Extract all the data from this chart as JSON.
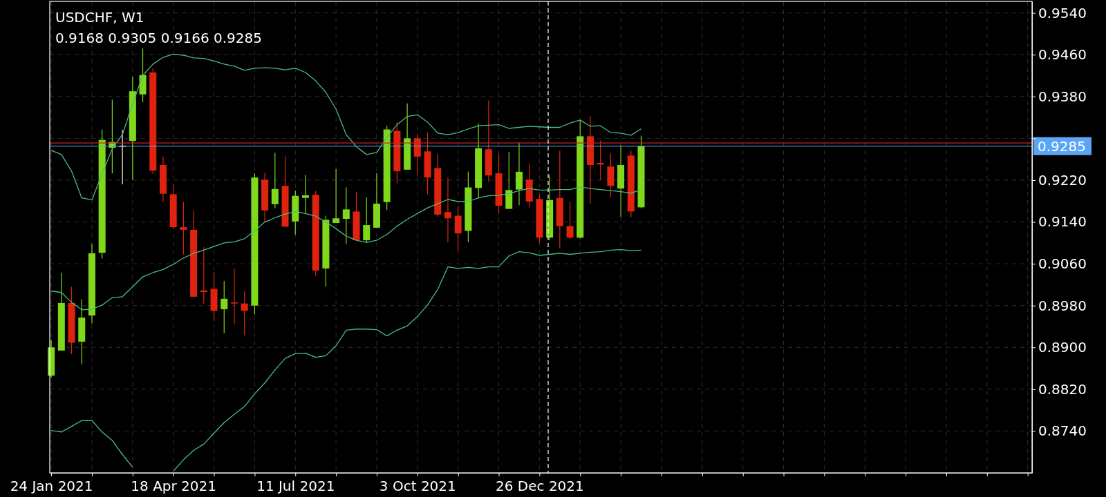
{
  "chart_data": {
    "type": "candlestick",
    "title": "USDCHF, W1",
    "subtitle": "0.9168 0.9305 0.9166 0.9285",
    "x": [
      "2021-01-24",
      "2021-01-31",
      "2021-02-07",
      "2021-02-14",
      "2021-02-21",
      "2021-02-28",
      "2021-03-07",
      "2021-03-14",
      "2021-03-21",
      "2021-03-28",
      "2021-04-04",
      "2021-04-11",
      "2021-04-18",
      "2021-04-25",
      "2021-05-02",
      "2021-05-09",
      "2021-05-16",
      "2021-05-23",
      "2021-05-30",
      "2021-06-06",
      "2021-06-13",
      "2021-06-20",
      "2021-06-27",
      "2021-07-04",
      "2021-07-11",
      "2021-07-18",
      "2021-07-25",
      "2021-08-01",
      "2021-08-08",
      "2021-08-15",
      "2021-08-22",
      "2021-08-29",
      "2021-09-05",
      "2021-09-12",
      "2021-09-19",
      "2021-09-26",
      "2021-10-03",
      "2021-10-10",
      "2021-10-17",
      "2021-10-24",
      "2021-10-31",
      "2021-11-07",
      "2021-11-14",
      "2021-11-21",
      "2021-11-28",
      "2021-12-05",
      "2021-12-12",
      "2021-12-19",
      "2021-12-26",
      "2022-01-02",
      "2022-01-09",
      "2022-01-16",
      "2022-01-23",
      "2022-01-30",
      "2022-02-06",
      "2022-02-13",
      "2022-02-20",
      "2022-02-27",
      "2022-03-06"
    ],
    "series": [
      {
        "type": "candlestick",
        "ohlc": [
          [
            0.8846,
            0.8914,
            0.8843,
            0.89
          ],
          [
            0.8894,
            0.9043,
            0.8894,
            0.8985
          ],
          [
            0.8985,
            0.9016,
            0.8887,
            0.8909
          ],
          [
            0.8911,
            0.8992,
            0.8868,
            0.8957
          ],
          [
            0.8961,
            0.9098,
            0.8946,
            0.908
          ],
          [
            0.9081,
            0.9317,
            0.907,
            0.9297
          ],
          [
            0.9282,
            0.9374,
            0.9233,
            0.9293
          ],
          [
            0.9286,
            0.9316,
            0.9212,
            0.9286
          ],
          [
            0.9295,
            0.9418,
            0.922,
            0.939
          ],
          [
            0.9384,
            0.9472,
            0.9369,
            0.9421
          ],
          [
            0.9426,
            0.9434,
            0.9232,
            0.9238
          ],
          [
            0.9249,
            0.9265,
            0.9178,
            0.9194
          ],
          [
            0.9193,
            0.9213,
            0.9127,
            0.913
          ],
          [
            0.913,
            0.9178,
            0.9078,
            0.9125
          ],
          [
            0.9125,
            0.9162,
            0.8997,
            0.8997
          ],
          [
            0.9009,
            0.9092,
            0.8984,
            0.9006
          ],
          [
            0.9012,
            0.9044,
            0.8951,
            0.897
          ],
          [
            0.8973,
            0.9027,
            0.8927,
            0.8993
          ],
          [
            0.8986,
            0.9051,
            0.8944,
            0.8984
          ],
          [
            0.8984,
            0.9007,
            0.8923,
            0.897
          ],
          [
            0.898,
            0.9233,
            0.8963,
            0.9225
          ],
          [
            0.9221,
            0.9234,
            0.914,
            0.9162
          ],
          [
            0.9174,
            0.9272,
            0.9166,
            0.9203
          ],
          [
            0.9209,
            0.9266,
            0.9131,
            0.9131
          ],
          [
            0.9141,
            0.92,
            0.9116,
            0.919
          ],
          [
            0.9186,
            0.923,
            0.9156,
            0.9191
          ],
          [
            0.9192,
            0.9199,
            0.9037,
            0.9047
          ],
          [
            0.9051,
            0.9152,
            0.9016,
            0.9144
          ],
          [
            0.9138,
            0.9241,
            0.9138,
            0.9147
          ],
          [
            0.9146,
            0.9206,
            0.9098,
            0.9164
          ],
          [
            0.916,
            0.9197,
            0.9105,
            0.9105
          ],
          [
            0.9105,
            0.9187,
            0.91,
            0.9134
          ],
          [
            0.9129,
            0.9233,
            0.9129,
            0.9175
          ],
          [
            0.9178,
            0.9324,
            0.9163,
            0.9317
          ],
          [
            0.9314,
            0.9331,
            0.9214,
            0.9237
          ],
          [
            0.924,
            0.9367,
            0.924,
            0.93
          ],
          [
            0.93,
            0.9308,
            0.923,
            0.9265
          ],
          [
            0.9275,
            0.9311,
            0.9193,
            0.9225
          ],
          [
            0.9243,
            0.927,
            0.915,
            0.9154
          ],
          [
            0.9159,
            0.9225,
            0.9101,
            0.9147
          ],
          [
            0.9152,
            0.9171,
            0.9083,
            0.9118
          ],
          [
            0.9123,
            0.9236,
            0.9101,
            0.9206
          ],
          [
            0.9205,
            0.9328,
            0.9186,
            0.9281
          ],
          [
            0.9279,
            0.9372,
            0.9217,
            0.9229
          ],
          [
            0.9233,
            0.9271,
            0.9156,
            0.9171
          ],
          [
            0.9165,
            0.9274,
            0.9165,
            0.9201
          ],
          [
            0.9202,
            0.9292,
            0.9172,
            0.9236
          ],
          [
            0.9221,
            0.9252,
            0.9167,
            0.9179
          ],
          [
            0.9184,
            0.9192,
            0.91,
            0.911
          ],
          [
            0.911,
            0.923,
            0.9105,
            0.9182
          ],
          [
            0.9186,
            0.9276,
            0.909,
            0.9132
          ],
          [
            0.9132,
            0.9179,
            0.9107,
            0.911
          ],
          [
            0.911,
            0.9334,
            0.9108,
            0.9304
          ],
          [
            0.9304,
            0.9342,
            0.9175,
            0.9249
          ],
          [
            0.9253,
            0.9296,
            0.922,
            0.925
          ],
          [
            0.9246,
            0.9271,
            0.9187,
            0.9209
          ],
          [
            0.9204,
            0.9287,
            0.915,
            0.9249
          ],
          [
            0.9267,
            0.9276,
            0.9149,
            0.916
          ],
          [
            0.9168,
            0.9305,
            0.9166,
            0.9285
          ]
        ],
        "colors": [
          "#7fd91a",
          "#7fd91a",
          "#e0230f",
          "#7fd91a",
          "#7fd91a",
          "#7fd91a",
          "#7fd91a",
          "#ffffff",
          "#7fd91a",
          "#7fd91a",
          "#e0230f",
          "#e0230f",
          "#e0230f",
          "#e0230f",
          "#e0230f",
          "#e0230f",
          "#e0230f",
          "#7fd91a",
          "#e0230f",
          "#e0230f",
          "#7fd91a",
          "#e0230f",
          "#7fd91a",
          "#e0230f",
          "#7fd91a",
          "#7fd91a",
          "#e0230f",
          "#7fd91a",
          "#7fd91a",
          "#7fd91a",
          "#e0230f",
          "#7fd91a",
          "#7fd91a",
          "#7fd91a",
          "#e0230f",
          "#7fd91a",
          "#e0230f",
          "#e0230f",
          "#e0230f",
          "#e0230f",
          "#e0230f",
          "#7fd91a",
          "#7fd91a",
          "#e0230f",
          "#e0230f",
          "#7fd91a",
          "#7fd91a",
          "#e0230f",
          "#e0230f",
          "#7fd91a",
          "#e0230f",
          "#e0230f",
          "#7fd91a",
          "#e0230f",
          "#e0230f",
          "#e0230f",
          "#7fd91a",
          "#e0230f",
          "#7fd91a"
        ]
      },
      {
        "type": "line",
        "color": "#4cbb85",
        "values": [
          0.9277,
          0.9269,
          0.9237,
          0.9186,
          0.9182,
          0.9232,
          0.928,
          0.9307,
          0.9366,
          0.942,
          0.9442,
          0.9455,
          0.9461,
          0.9459,
          0.9454,
          0.9453,
          0.9448,
          0.9442,
          0.9438,
          0.943,
          0.9434,
          0.9435,
          0.9434,
          0.9431,
          0.9434,
          0.9426,
          0.941,
          0.9388,
          0.9356,
          0.9307,
          0.9284,
          0.9269,
          0.9273,
          0.9302,
          0.9326,
          0.9342,
          0.9345,
          0.9331,
          0.931,
          0.9307,
          0.9311,
          0.9318,
          0.9324,
          0.9325,
          0.9326,
          0.9319,
          0.9321,
          0.9323,
          0.9322,
          0.9321,
          0.9321,
          0.9329,
          0.9335,
          0.9323,
          0.9324,
          0.9311,
          0.931,
          0.9306,
          0.9318
        ]
      },
      {
        "type": "line",
        "color": "#4cbb85",
        "values": [
          0.9008,
          0.9005,
          0.8986,
          0.8972,
          0.8973,
          0.8981,
          0.8995,
          0.8997,
          0.9016,
          0.9035,
          0.9043,
          0.9049,
          0.9059,
          0.9071,
          0.908,
          0.9086,
          0.9093,
          0.91,
          0.9102,
          0.9108,
          0.9123,
          0.914,
          0.9148,
          0.9155,
          0.916,
          0.9156,
          0.9151,
          0.914,
          0.9127,
          0.9113,
          0.9105,
          0.9101,
          0.9105,
          0.9116,
          0.9132,
          0.9145,
          0.9156,
          0.9167,
          0.9175,
          0.9183,
          0.9179,
          0.9179,
          0.9186,
          0.919,
          0.9191,
          0.9194,
          0.92,
          0.9204,
          0.9201,
          0.9201,
          0.9202,
          0.9202,
          0.9207,
          0.9204,
          0.9202,
          0.92,
          0.9198,
          0.9195,
          0.9202
        ]
      },
      {
        "type": "line",
        "color": "#4cbb85",
        "values": [
          0.8741,
          0.8738,
          0.8749,
          0.876,
          0.876,
          0.8738,
          0.8722,
          0.8695,
          0.8671,
          null,
          null,
          null,
          0.8663,
          0.8685,
          0.8703,
          0.8715,
          0.8736,
          0.8756,
          0.8772,
          0.8787,
          0.8811,
          0.8832,
          0.8857,
          0.8879,
          0.8888,
          0.8889,
          0.8881,
          0.8884,
          0.8903,
          0.8933,
          0.8935,
          0.8935,
          0.8934,
          0.8922,
          0.8933,
          0.8941,
          0.8959,
          0.8981,
          0.9011,
          0.9054,
          0.9051,
          0.9053,
          0.9051,
          0.9054,
          0.9054,
          0.9075,
          0.9083,
          0.9081,
          0.9076,
          0.9078,
          0.908,
          0.9078,
          0.908,
          0.9082,
          0.9083,
          0.9086,
          0.9087,
          0.9085,
          0.9086
        ]
      }
    ],
    "xlim": [
      "2021-01-23",
      "2022-11-30"
    ],
    "xticks": [
      {
        "value": "2021-01-24",
        "label": "24 Jan 2021"
      },
      {
        "value": "2021-02-21",
        "label": null
      },
      {
        "value": "2021-03-21",
        "label": null
      },
      {
        "value": "2021-04-18",
        "label": "18 Apr 2021"
      },
      {
        "value": "2021-05-16",
        "label": null
      },
      {
        "value": "2021-06-13",
        "label": null
      },
      {
        "value": "2021-07-11",
        "label": "11 Jul 2021"
      },
      {
        "value": "2021-08-08",
        "label": null
      },
      {
        "value": "2021-09-05",
        "label": null
      },
      {
        "value": "2021-10-03",
        "label": "3 Oct 2021"
      },
      {
        "value": "2021-10-31",
        "label": null
      },
      {
        "value": "2021-11-28",
        "label": null
      },
      {
        "value": "2021-12-26",
        "label": "26 Dec 2021"
      },
      {
        "value": "2022-01-23",
        "label": null
      },
      {
        "value": "2022-02-20",
        "label": null
      },
      {
        "value": "2022-03-20",
        "label": null
      },
      {
        "value": "2022-04-17",
        "label": null
      },
      {
        "value": "2022-05-15",
        "label": null
      },
      {
        "value": "2022-06-12",
        "label": null
      },
      {
        "value": "2022-07-10",
        "label": null
      },
      {
        "value": "2022-08-07",
        "label": null
      },
      {
        "value": "2022-09-04",
        "label": null
      },
      {
        "value": "2022-10-02",
        "label": null
      },
      {
        "value": "2022-10-30",
        "label": null
      },
      {
        "value": "2022-11-27",
        "label": null
      }
    ],
    "ylim": [
      0.866,
      0.9562
    ],
    "yticks": [
      {
        "value": 0.874,
        "label": "0.8740"
      },
      {
        "value": 0.882,
        "label": "0.8820"
      },
      {
        "value": 0.89,
        "label": "0.8900"
      },
      {
        "value": 0.898,
        "label": "0.8980"
      },
      {
        "value": 0.906,
        "label": "0.9060"
      },
      {
        "value": 0.914,
        "label": "0.9140"
      },
      {
        "value": 0.922,
        "label": "0.9220"
      },
      {
        "value": 0.93,
        "label": null
      },
      {
        "value": 0.938,
        "label": "0.9380"
      },
      {
        "value": 0.946,
        "label": "0.9460"
      },
      {
        "value": 0.954,
        "label": "0.9540"
      }
    ],
    "grid": true,
    "ref_lines": [
      {
        "axis": "y",
        "value": 0.9291,
        "label": null,
        "color": "#d02020",
        "line_style": "solid"
      },
      {
        "axis": "y",
        "value": 0.9285,
        "label": "0.9285",
        "color": "#5aa6f5",
        "line_style": "solid"
      },
      {
        "axis": "x",
        "value": "2022-01-01",
        "label": null,
        "color": "#ffffff",
        "line_style": "dashed"
      }
    ]
  }
}
